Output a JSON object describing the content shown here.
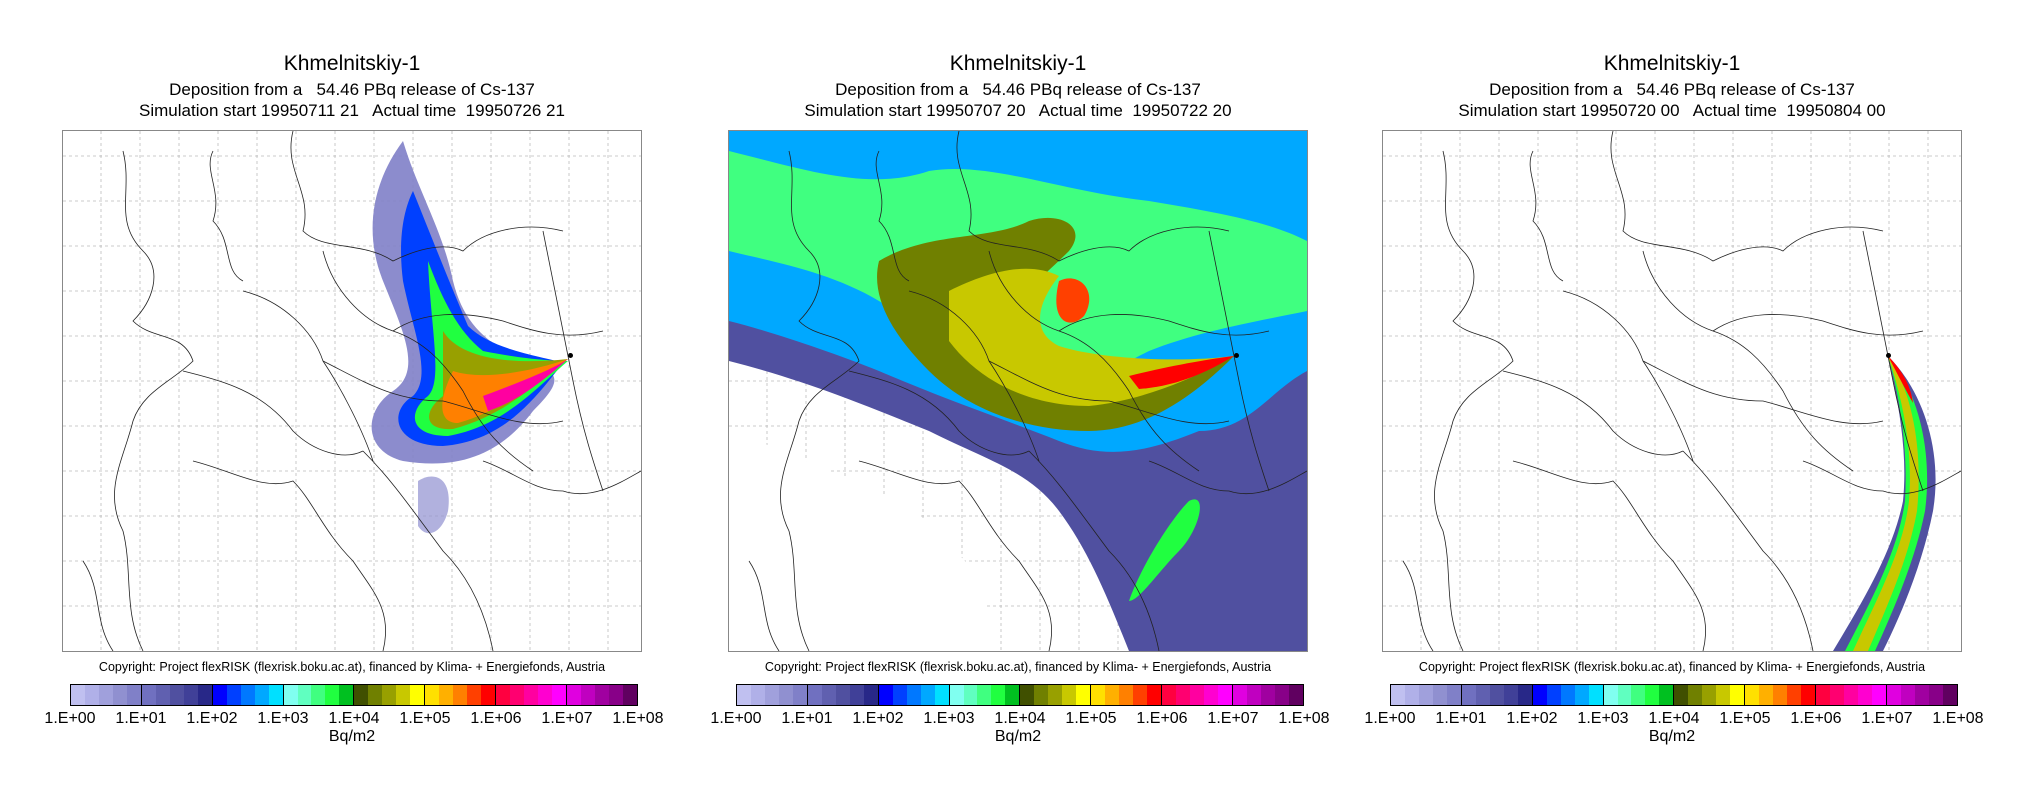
{
  "panels": [
    {
      "title": "Khmelnitskiy-1",
      "deposition": "Deposition from a   54.46 PBq release of Cs-137",
      "time_line": "Simulation start 19950711 21   Actual time  19950726 21"
    },
    {
      "title": "Khmelnitskiy-1",
      "deposition": "Deposition from a   54.46 PBq release of Cs-137",
      "time_line": "Simulation start 19950707 20   Actual time  19950722 20"
    },
    {
      "title": "Khmelnitskiy-1",
      "deposition": "Deposition from a   54.46 PBq release of Cs-137",
      "time_line": "Simulation start 19950720 00   Actual time  19950804 00"
    }
  ],
  "copyright": "Copyright: Project flexRISK (flexrisk.boku.ac.at), financed by Klima- + Energiefonds, Austria",
  "colorbar": {
    "unit": "Bq/m2",
    "ticks": [
      "1.E+00",
      "1.E+01",
      "1.E+02",
      "1.E+03",
      "1.E+04",
      "1.E+05",
      "1.E+06",
      "1.E+07",
      "1.E+08"
    ],
    "colors": [
      "#c0c0f0",
      "#b0b0e8",
      "#a0a0dc",
      "#9090d0",
      "#8080c8",
      "#7070c0",
      "#6060b0",
      "#5050a0",
      "#404098",
      "#282888",
      "#0000ff",
      "#0040ff",
      "#0078ff",
      "#00a8ff",
      "#00e0ff",
      "#80fff0",
      "#60ffc0",
      "#40ff80",
      "#20ff40",
      "#00c020",
      "#405000",
      "#708000",
      "#98a000",
      "#c8c800",
      "#ffff00",
      "#ffe000",
      "#ffb000",
      "#ff8000",
      "#ff4000",
      "#ff0000",
      "#ff0040",
      "#ff0070",
      "#ff00a0",
      "#ff00d0",
      "#ff00ff",
      "#e000e0",
      "#c000c0",
      "#a000a0",
      "#880088",
      "#600060"
    ]
  }
}
